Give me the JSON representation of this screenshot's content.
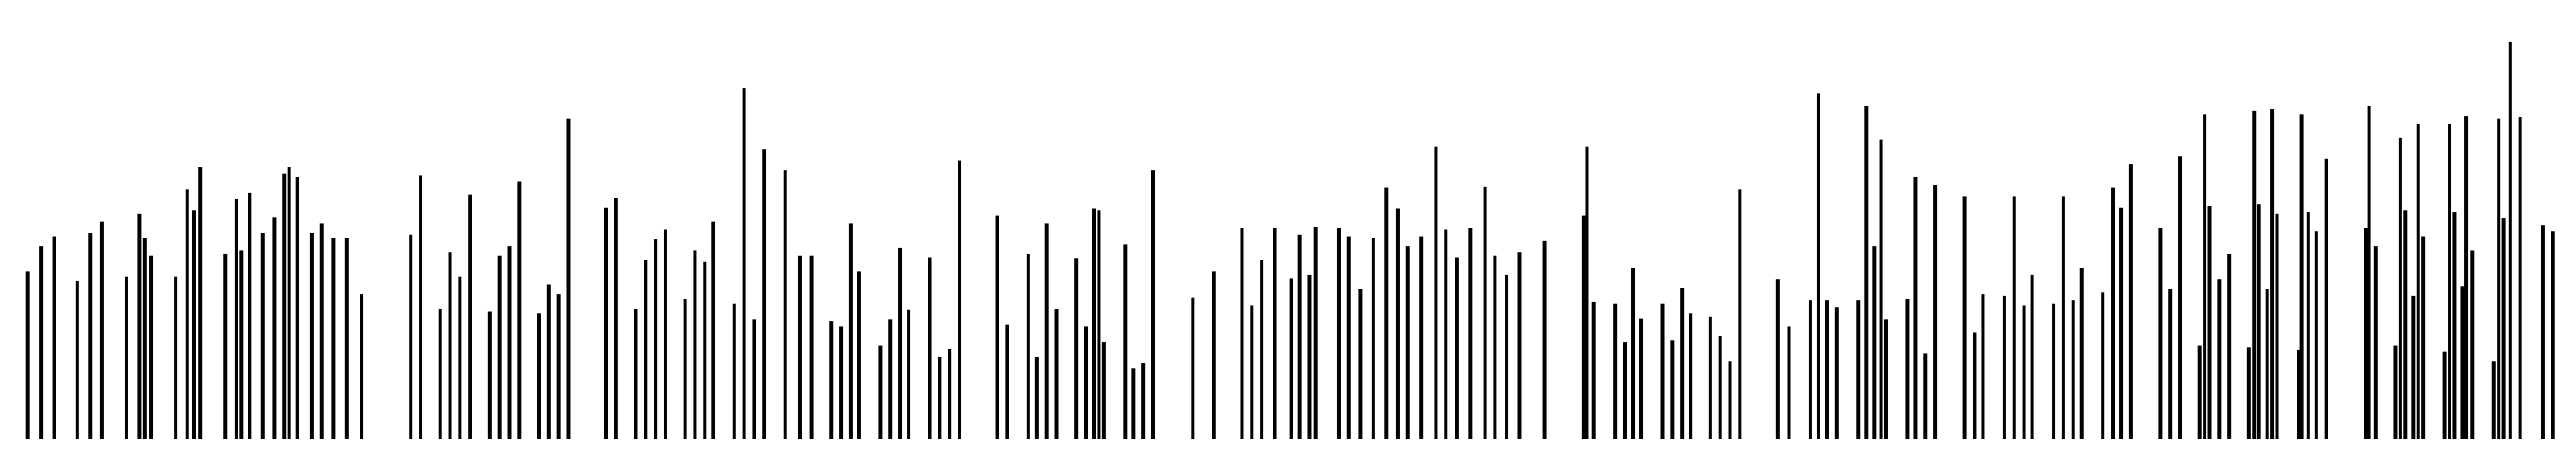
{
  "chart_data": {
    "type": "bar",
    "color": "#000000",
    "xlim": [
      0,
      1568
    ],
    "ylim": [
      0,
      273
    ],
    "x": [
      17,
      25,
      33,
      47,
      55,
      62,
      77,
      85,
      88,
      92,
      107,
      114,
      118,
      122,
      137,
      144,
      147,
      152,
      160,
      167,
      173,
      176,
      181,
      190,
      196,
      203,
      211,
      220,
      250,
      256,
      268,
      274,
      280,
      286,
      298,
      304,
      310,
      316,
      328,
      334,
      340,
      346,
      369,
      375,
      387,
      393,
      399,
      405,
      417,
      423,
      429,
      434,
      447,
      453,
      459,
      465,
      478,
      487,
      494,
      506,
      512,
      518,
      523,
      536,
      542,
      548,
      553,
      566,
      572,
      578,
      584,
      607,
      613,
      626,
      631,
      637,
      643,
      655,
      661,
      666,
      669,
      672,
      685,
      690,
      696,
      702,
      726,
      739,
      756,
      762,
      768,
      776,
      786,
      791,
      797,
      801,
      815,
      821,
      828,
      836,
      844,
      851,
      857,
      865,
      874,
      880,
      887,
      895,
      904,
      910,
      917,
      925,
      940,
      964,
      966,
      970,
      983,
      989,
      994,
      999,
      1012,
      1018,
      1024,
      1029,
      1041,
      1047,
      1053,
      1059,
      1082,
      1089,
      1102,
      1107,
      1112,
      1118,
      1131,
      1136,
      1141,
      1145,
      1148,
      1161,
      1166,
      1172,
      1178,
      1196,
      1202,
      1207,
      1220,
      1226,
      1232,
      1237,
      1250,
      1256,
      1262,
      1267,
      1280,
      1286,
      1291,
      1297,
      1315,
      1321,
      1327,
      1339,
      1342,
      1345,
      1351,
      1357,
      1369,
      1372,
      1375,
      1380,
      1383,
      1386,
      1399,
      1401,
      1405,
      1410,
      1416,
      1440,
      1442,
      1446,
      1458,
      1461,
      1464,
      1469,
      1472,
      1475,
      1488,
      1491,
      1494,
      1499,
      1501,
      1505,
      1518,
      1521,
      1524,
      1528,
      1534,
      1548,
      1554
    ],
    "values": [
      104,
      120,
      126,
      98,
      128,
      135,
      101,
      140,
      125,
      114,
      101,
      155,
      142,
      169,
      115,
      149,
      117,
      153,
      128,
      138,
      165,
      169,
      163,
      128,
      134,
      125,
      125,
      90,
      127,
      164,
      81,
      116,
      101,
      152,
      79,
      114,
      120,
      160,
      78,
      96,
      90,
      199,
      144,
      150,
      81,
      111,
      124,
      130,
      87,
      117,
      110,
      135,
      84,
      218,
      74,
      180,
      167,
      114,
      114,
      73,
      70,
      134,
      104,
      58,
      74,
      119,
      80,
      113,
      51,
      56,
      173,
      139,
      71,
      115,
      51,
      134,
      81,
      112,
      70,
      143,
      142,
      60,
      121,
      44,
      47,
      167,
      88,
      104,
      131,
      83,
      111,
      131,
      100,
      127,
      102,
      132,
      131,
      126,
      93,
      125,
      156,
      143,
      120,
      126,
      182,
      130,
      113,
      131,
      157,
      114,
      102,
      116,
      123,
      139,
      182,
      85,
      84,
      60,
      106,
      75,
      84,
      61,
      94,
      78,
      76,
      64,
      48,
      155,
      99,
      70,
      86,
      215,
      86,
      82,
      86,
      207,
      120,
      186,
      74,
      87,
      163,
      53,
      158,
      151,
      66,
      90,
      89,
      151,
      83,
      102,
      84,
      151,
      86,
      106,
      91,
      156,
      144,
      171,
      131,
      93,
      176,
      58,
      202,
      145,
      99,
      115,
      57,
      204,
      146,
      93,
      205,
      140,
      55,
      202,
      141,
      129,
      174,
      131,
      207,
      120,
      58,
      187,
      142,
      89,
      196,
      126,
      54,
      196,
      141,
      95,
      201,
      117,
      48,
      199,
      137,
      247,
      200,
      133,
      129
    ]
  }
}
